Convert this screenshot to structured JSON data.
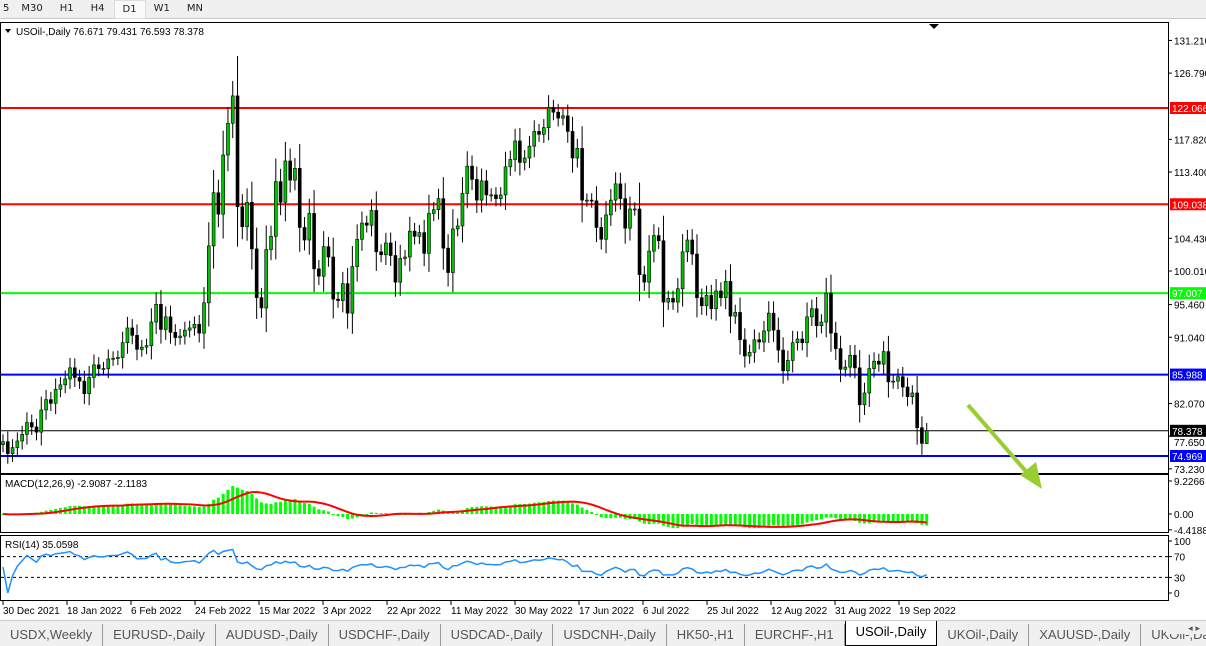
{
  "toolbar": {
    "timeframes": [
      "5",
      "M30",
      "H1",
      "H4",
      "D1",
      "W1",
      "MN"
    ],
    "active": "D1"
  },
  "tabs": {
    "items": [
      "USDX,Weekly",
      "EURUSD-,Daily",
      "AUDUSD-,Daily",
      "USDCHF-,Daily",
      "USDCAD-,Daily",
      "USDCNH-,Daily",
      "HK50-,H1",
      "EURCHF-,H1",
      "USOil-,Daily",
      "UKOil-,Daily",
      "XAUUSD-,Daily",
      "UKOil-,Da"
    ],
    "active": "USOil-,Daily",
    "nav": "◂ ▸"
  },
  "chart_data": {
    "type": "candlestick",
    "symbol": "USOil-,Daily",
    "header": "USOil-,Daily  76.671 79.431 76.593 78.378",
    "ohlc_last": {
      "open": 76.671,
      "high": 79.431,
      "low": 76.593,
      "close": 78.378
    },
    "ylim": [
      73.23,
      131.21
    ],
    "y_ticks": [
      "131.210",
      "126.790",
      "117.820",
      "113.400",
      "104.430",
      "100.010",
      "95.460",
      "91.040",
      "82.070",
      "77.650",
      "73.230"
    ],
    "x_ticks": [
      "30 Dec 2021",
      "18 Jan 2022",
      "6 Feb 2022",
      "24 Feb 2022",
      "15 Mar 2022",
      "3 Apr 2022",
      "22 Apr 2022",
      "11 May 2022",
      "30 May 2022",
      "17 Jun 2022",
      "6 Jul 2022",
      "25 Jul 2022",
      "12 Aug 2022",
      "31 Aug 2022",
      "19 Sep 2022"
    ],
    "closes": [
      76.9,
      75.3,
      76.1,
      77.0,
      77.9,
      79.5,
      78.9,
      78.2,
      81.2,
      82.6,
      82.1,
      84.0,
      84.6,
      85.4,
      86.9,
      85.6,
      85.1,
      83.4,
      85.6,
      87.3,
      86.8,
      86.8,
      88.1,
      88.2,
      88.3,
      90.3,
      92.3,
      91.3,
      89.4,
      89.7,
      89.9,
      93.1,
      95.5,
      92.1,
      93.8,
      91.7,
      91.0,
      91.2,
      92.0,
      92.3,
      92.8,
      91.6,
      95.7,
      103.4,
      110.6,
      107.7,
      115.7,
      120.0,
      123.7,
      108.7,
      106.0,
      109.3,
      103.0,
      96.4,
      95.0,
      102.9,
      104.7,
      112.1,
      109.3,
      114.9,
      112.3,
      113.9,
      105.9,
      104.2,
      107.8,
      100.3,
      99.3,
      103.3,
      101.9,
      96.2,
      96.0,
      98.3,
      94.3,
      100.6,
      104.3,
      106.5,
      106.2,
      108.2,
      102.6,
      102.2,
      103.8,
      102.1,
      98.5,
      101.7,
      101.9,
      105.4,
      104.7,
      105.2,
      102.4,
      107.8,
      108.3,
      109.8,
      103.1,
      99.8,
      105.7,
      106.1,
      110.5,
      114.2,
      112.4,
      109.6,
      112.2,
      110.3,
      110.3,
      109.8,
      110.3,
      114.1,
      115.1,
      117.6,
      114.7,
      115.3,
      116.9,
      118.9,
      118.5,
      119.4,
      122.1,
      121.5,
      120.7,
      121.0,
      118.9,
      115.3,
      116.6,
      109.6,
      109.6,
      109.5,
      105.9,
      104.3,
      107.6,
      109.6,
      111.8,
      109.8,
      105.8,
      108.4,
      108.4,
      99.5,
      98.5,
      102.7,
      104.8,
      104.1,
      95.8,
      96.3,
      95.8,
      97.6,
      102.6,
      104.2,
      102.3,
      96.4,
      95.3,
      96.7,
      94.9,
      97.3,
      96.4,
      98.6,
      93.9,
      94.4,
      90.7,
      88.5,
      89.0,
      90.7,
      90.4,
      91.9,
      94.3,
      92.0,
      89.3,
      86.5,
      87.9,
      90.3,
      90.8,
      90.3,
      93.8,
      94.9,
      92.6,
      93.1,
      97.0,
      91.6,
      89.5,
      86.7,
      87.0,
      88.6,
      86.9,
      81.9,
      83.5,
      86.8,
      87.8,
      87.4,
      89.1,
      85.0,
      85.1,
      85.7,
      84.3,
      83.0,
      83.5,
      78.8,
      76.671,
      78.378
    ],
    "levels": [
      {
        "value": 122.066,
        "label": "122.066",
        "color": "#ff0000"
      },
      {
        "value": 109.038,
        "label": "109.038",
        "color": "#ff0000"
      },
      {
        "value": 97.007,
        "label": "97.007",
        "color": "#00ff00"
      },
      {
        "value": 85.988,
        "label": "85.988",
        "color": "#0000ff"
      },
      {
        "value": 74.969,
        "label": "74.969",
        "color": "#0000ff"
      },
      {
        "value": 78.378,
        "label": "78.378",
        "color": "#000000"
      }
    ],
    "up_color": "#00c000",
    "down_color": "#000000",
    "arrow": {
      "direction": "down",
      "color": "#9acd32"
    },
    "macd": {
      "label": "MACD(12,26,9) -2.9087 -2.1183",
      "params": [
        12,
        26,
        9
      ],
      "value": -2.9087,
      "signal": -2.1183,
      "ylim": [
        -4.4188,
        9.2266
      ],
      "ticks": [
        "9.2266",
        "0.00",
        "-4.4188"
      ],
      "hist_color": "#00ff00",
      "signal_color": "#ff0000"
    },
    "rsi": {
      "label": "RSI(14) 35.0598",
      "period": 14,
      "value": 35.0598,
      "ylim": [
        0,
        100
      ],
      "levels": [
        70,
        30
      ],
      "ticks": [
        "100",
        "70",
        "30",
        "0"
      ],
      "color": "#1e90ff"
    }
  }
}
